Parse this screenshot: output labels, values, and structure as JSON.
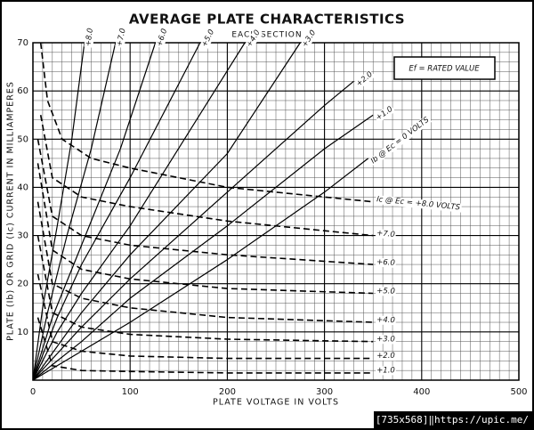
{
  "chart_data": {
    "type": "line",
    "title": "AVERAGE PLATE CHARACTERISTICS",
    "subtitle": "EACH SECTION",
    "x_label": "PLATE VOLTAGE IN VOLTS",
    "y_label": "PLATE (Ib) OR GRID (Ic) CURRENT IN MILLIAMPERES",
    "annotation": "Ef = RATED VALUE",
    "watermark": "[735x568]‖https://upic.me/",
    "xlim": [
      0,
      500
    ],
    "ylim": [
      0,
      70
    ],
    "xticks": [
      0,
      100,
      200,
      300,
      400,
      500
    ],
    "yticks": [
      10,
      20,
      30,
      40,
      50,
      60,
      70
    ],
    "grid": true,
    "series": [
      {
        "name": "+8.0",
        "color": "#000",
        "dash": false,
        "x": [
          0,
          10,
          25,
          40,
          53
        ],
        "values": [
          0,
          15,
          32,
          50,
          70
        ]
      },
      {
        "name": "+7.0",
        "color": "#000",
        "dash": false,
        "x": [
          0,
          15,
          35,
          60,
          85
        ],
        "values": [
          0,
          14,
          30,
          48,
          70
        ]
      },
      {
        "name": "+6.0",
        "color": "#000",
        "dash": false,
        "x": [
          0,
          20,
          50,
          90,
          126
        ],
        "values": [
          0,
          13,
          28,
          48,
          70
        ]
      },
      {
        "name": "+5.0",
        "color": "#000",
        "dash": false,
        "x": [
          0,
          25,
          50,
          100,
          172
        ],
        "values": [
          0,
          13,
          24,
          42,
          70
        ]
      },
      {
        "name": "+4.0",
        "color": "#000",
        "dash": false,
        "x": [
          0,
          25,
          50,
          100,
          218
        ],
        "values": [
          0,
          10,
          18,
          32,
          70
        ]
      },
      {
        "name": "+3.0",
        "color": "#000",
        "dash": false,
        "x": [
          0,
          50,
          100,
          200,
          275
        ],
        "values": [
          0,
          14,
          26,
          47,
          70
        ]
      },
      {
        "name": "+2.0",
        "color": "#000",
        "dash": false,
        "x": [
          0,
          50,
          100,
          200,
          300,
          330
        ],
        "values": [
          0,
          11,
          21,
          39,
          57,
          62
        ]
      },
      {
        "name": "+1.0",
        "color": "#000",
        "dash": false,
        "x": [
          0,
          50,
          100,
          200,
          300,
          350
        ],
        "values": [
          0,
          8,
          17,
          32,
          48,
          55
        ]
      },
      {
        "name": "Ib @ Ec = 0 VOLTS",
        "color": "#000",
        "dash": false,
        "x": [
          0,
          100,
          200,
          300,
          345
        ],
        "values": [
          0,
          12,
          25,
          39,
          46
        ]
      },
      {
        "name": "Ic @ Ec = +8.0 VOLTS",
        "color": "#000",
        "dash": true,
        "x": [
          8,
          15,
          30,
          60,
          100,
          200,
          300,
          350
        ],
        "values": [
          70,
          58,
          50,
          46,
          44,
          40,
          38,
          37
        ]
      },
      {
        "name": "+7.0",
        "color": "#000",
        "dash": true,
        "x": [
          8,
          20,
          50,
          100,
          200,
          300,
          350
        ],
        "values": [
          55,
          42,
          38,
          36,
          33,
          31,
          30
        ]
      },
      {
        "name": "+6.0",
        "color": "#000",
        "dash": true,
        "x": [
          5,
          20,
          50,
          100,
          200,
          350
        ],
        "values": [
          50,
          34,
          30,
          28,
          26,
          24
        ]
      },
      {
        "name": "+5.0",
        "color": "#000",
        "dash": true,
        "x": [
          5,
          20,
          50,
          100,
          200,
          350
        ],
        "values": [
          45,
          27,
          23,
          21,
          19,
          18
        ]
      },
      {
        "name": "+4.0",
        "color": "#000",
        "dash": true,
        "x": [
          5,
          20,
          50,
          100,
          200,
          350
        ],
        "values": [
          37,
          20,
          17,
          15,
          13,
          12
        ]
      },
      {
        "name": "+3.0",
        "color": "#000",
        "dash": true,
        "x": [
          5,
          20,
          50,
          100,
          200,
          350
        ],
        "values": [
          30,
          14,
          11,
          9.5,
          8.5,
          8
        ]
      },
      {
        "name": "+2.0",
        "color": "#000",
        "dash": true,
        "x": [
          5,
          20,
          50,
          100,
          200,
          350
        ],
        "values": [
          22,
          8,
          6,
          5,
          4.5,
          4.5
        ]
      },
      {
        "name": "+1.0",
        "color": "#000",
        "dash": true,
        "x": [
          5,
          20,
          50,
          100,
          200,
          350
        ],
        "values": [
          13,
          3,
          2,
          1.8,
          1.5,
          1.5
        ]
      }
    ]
  }
}
